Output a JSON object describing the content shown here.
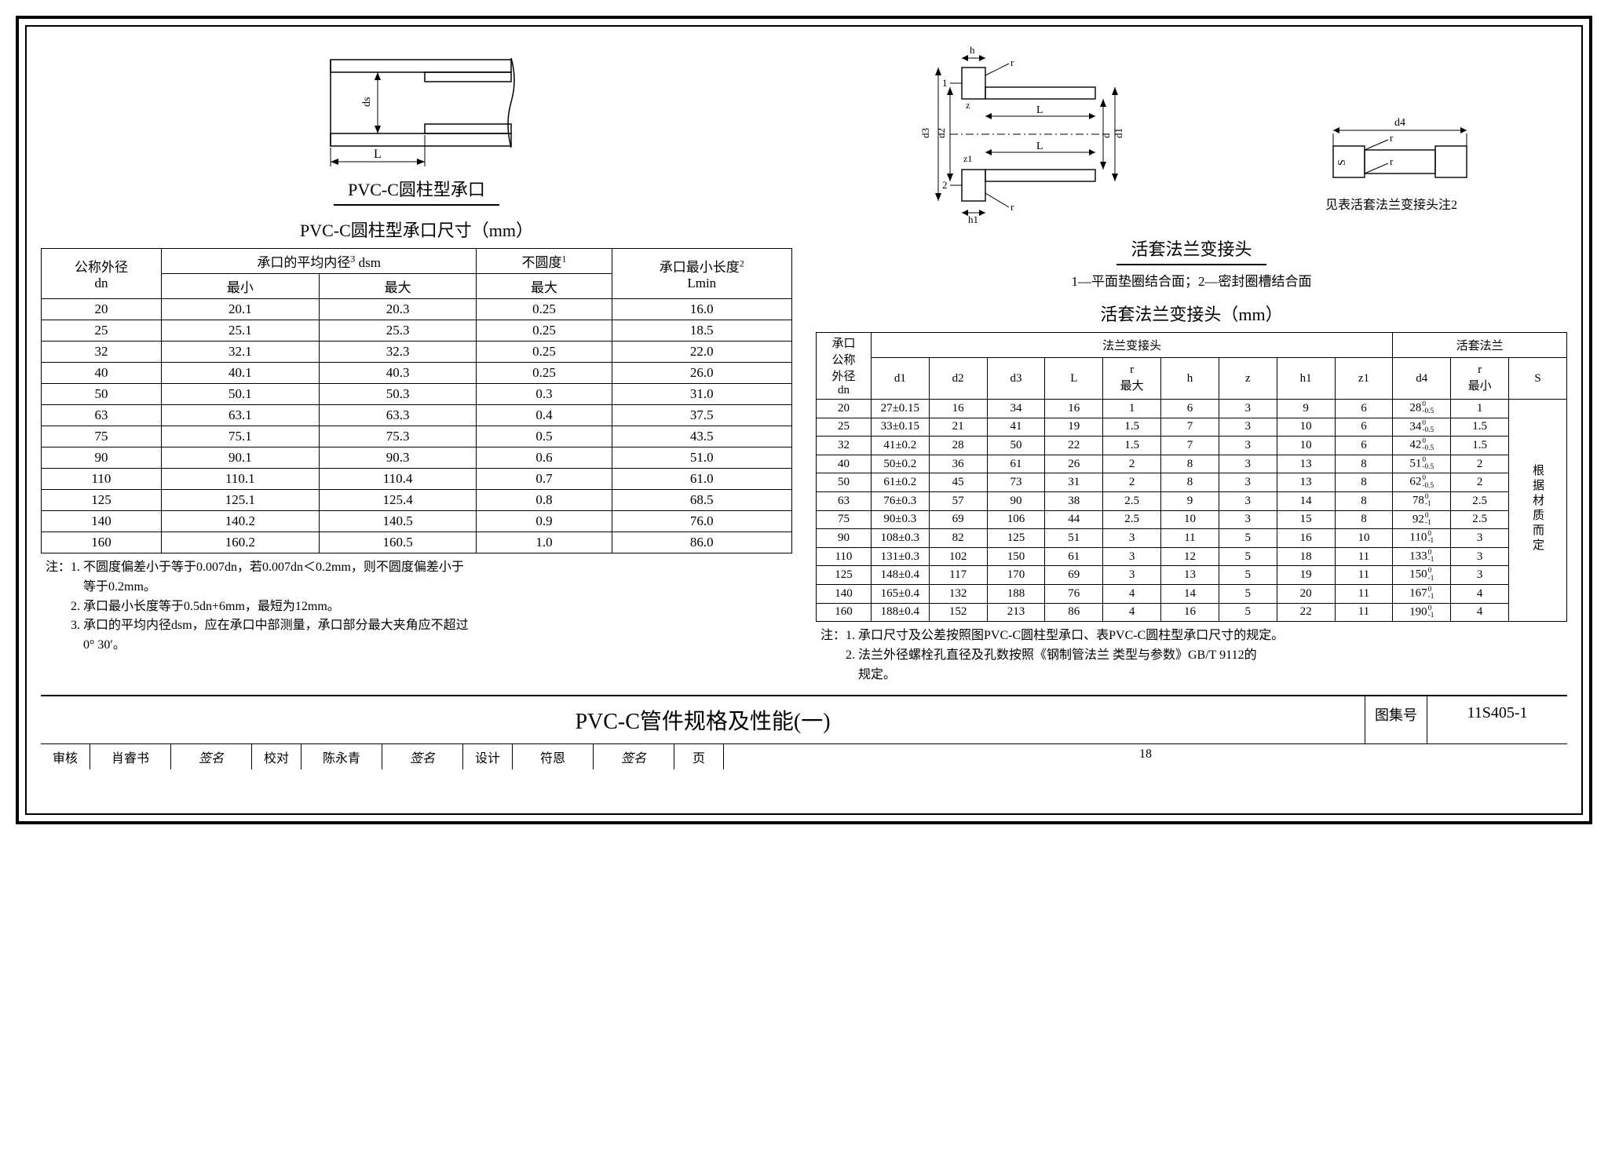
{
  "left": {
    "fig_caption": "PVC-C圆柱型承口",
    "table_title": "PVC-C圆柱型承口尺寸（mm）",
    "headers": {
      "h1": "公称外径\ndn",
      "h2": "承口的平均内径",
      "h2sup": "3",
      "h2suffix": " dsm",
      "h3": "不圆度",
      "h3sup": "1",
      "h4": "承口最小长度",
      "h4sup": "2",
      "sub_min": "最小",
      "sub_max": "最大",
      "sub_umax": "最大",
      "sub_lmin": "Lmin"
    },
    "rows": [
      [
        "20",
        "20.1",
        "20.3",
        "0.25",
        "16.0"
      ],
      [
        "25",
        "25.1",
        "25.3",
        "0.25",
        "18.5"
      ],
      [
        "32",
        "32.1",
        "32.3",
        "0.25",
        "22.0"
      ],
      [
        "40",
        "40.1",
        "40.3",
        "0.25",
        "26.0"
      ],
      [
        "50",
        "50.1",
        "50.3",
        "0.3",
        "31.0"
      ],
      [
        "63",
        "63.1",
        "63.3",
        "0.4",
        "37.5"
      ],
      [
        "75",
        "75.1",
        "75.3",
        "0.5",
        "43.5"
      ],
      [
        "90",
        "90.1",
        "90.3",
        "0.6",
        "51.0"
      ],
      [
        "110",
        "110.1",
        "110.4",
        "0.7",
        "61.0"
      ],
      [
        "125",
        "125.1",
        "125.4",
        "0.8",
        "68.5"
      ],
      [
        "140",
        "140.2",
        "140.5",
        "0.9",
        "76.0"
      ],
      [
        "160",
        "160.2",
        "160.5",
        "1.0",
        "86.0"
      ]
    ],
    "notes": "注：1. 不圆度偏差小于等于0.007dn，若0.007dn＜0.2mm，则不圆度偏差小于\n　　　等于0.2mm。\n　　2. 承口最小长度等于0.5dn+6mm，最短为12mm。\n　　3. 承口的平均内径dsm，应在承口中部测量，承口部分最大夹角应不超过\n　　　0° 30′。"
  },
  "right": {
    "fig2_caption": "活套法兰变接头",
    "fig2_sub": "1—平面垫圈结合面；2—密封圈槽结合面",
    "fig3_sub": "见表活套法兰变接头注2",
    "table_title": "活套法兰变接头（mm）",
    "headers": {
      "col0": "承口\n公称\n外径\ndn",
      "g1": "法兰变接头",
      "g2": "活套法兰",
      "c": [
        "d1",
        "d2",
        "d3",
        "L",
        "r\n最大",
        "h",
        "z",
        "h1",
        "z1",
        "d4",
        "r\n最小",
        "S"
      ]
    },
    "rows": [
      [
        "20",
        "27±0.15",
        "16",
        "34",
        "16",
        "1",
        "6",
        "3",
        "9",
        "6",
        "28",
        "1"
      ],
      [
        "25",
        "33±0.15",
        "21",
        "41",
        "19",
        "1.5",
        "7",
        "3",
        "10",
        "6",
        "34",
        "1.5"
      ],
      [
        "32",
        "41±0.2",
        "28",
        "50",
        "22",
        "1.5",
        "7",
        "3",
        "10",
        "6",
        "42",
        "1.5"
      ],
      [
        "40",
        "50±0.2",
        "36",
        "61",
        "26",
        "2",
        "8",
        "3",
        "13",
        "8",
        "51",
        "2"
      ],
      [
        "50",
        "61±0.2",
        "45",
        "73",
        "31",
        "2",
        "8",
        "3",
        "13",
        "8",
        "62",
        "2"
      ],
      [
        "63",
        "76±0.3",
        "57",
        "90",
        "38",
        "2.5",
        "9",
        "3",
        "14",
        "8",
        "78",
        "2.5"
      ],
      [
        "75",
        "90±0.3",
        "69",
        "106",
        "44",
        "2.5",
        "10",
        "3",
        "15",
        "8",
        "92",
        "2.5"
      ],
      [
        "90",
        "108±0.3",
        "82",
        "125",
        "51",
        "3",
        "11",
        "5",
        "16",
        "10",
        "110",
        "3"
      ],
      [
        "110",
        "131±0.3",
        "102",
        "150",
        "61",
        "3",
        "12",
        "5",
        "18",
        "11",
        "133",
        "3"
      ],
      [
        "125",
        "148±0.4",
        "117",
        "170",
        "69",
        "3",
        "13",
        "5",
        "19",
        "11",
        "150",
        "3"
      ],
      [
        "140",
        "165±0.4",
        "132",
        "188",
        "76",
        "4",
        "14",
        "5",
        "20",
        "11",
        "167",
        "4"
      ],
      [
        "160",
        "188±0.4",
        "152",
        "213",
        "86",
        "4",
        "16",
        "5",
        "22",
        "11",
        "190",
        "4"
      ]
    ],
    "d4tol": [
      " 0\n-0.5",
      " 0\n-0.5",
      " 0\n-0.5",
      " 0\n-0.5",
      " 0\n-0.5",
      " 0\n-1",
      " 0\n-1",
      " 0\n-1",
      " 0\n-1",
      " 0\n-1",
      " 0\n-1",
      " 0\n-1"
    ],
    "scol": "根\n据\n材\n质\n而\n定",
    "notes": "注：1. 承口尺寸及公差按照图PVC-C圆柱型承口、表PVC-C圆柱型承口尺寸的规定。\n　　2. 法兰外径螺栓孔直径及孔数按照《钢制管法兰 类型与参数》GB/T 9112的\n　　　规定。"
  },
  "title": {
    "main": "PVC-C管件规格及性能(一)",
    "set_lbl": "图集号",
    "set_no": "11S405-1"
  },
  "sig": {
    "a1": "审核",
    "a2": "肖睿书",
    "b1": "校对",
    "b2": "陈永青",
    "c1": "设计",
    "c2": "符恩",
    "p": "页",
    "pn": "18"
  },
  "colors": {
    "line": "#000000",
    "bg": "#ffffff",
    "hatch": "#000000"
  }
}
